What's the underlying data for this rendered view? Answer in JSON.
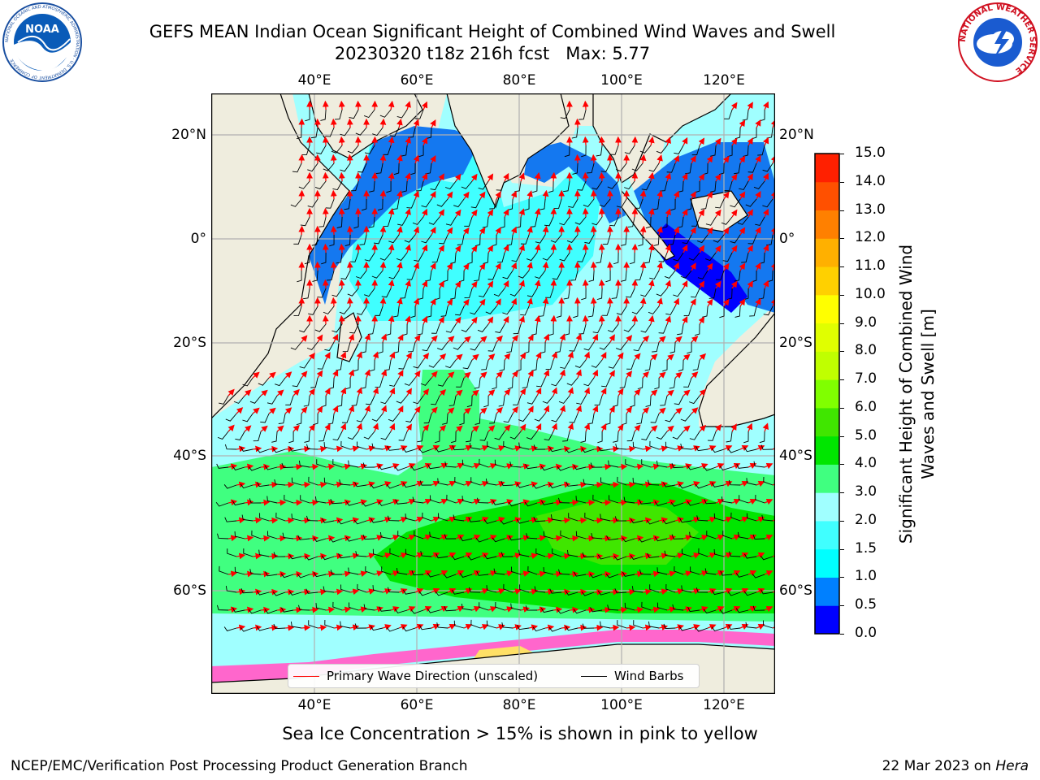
{
  "title": {
    "line1": "GEFS MEAN Indian Ocean Significant Height of Combined Wind Waves and Swell",
    "line2": "20230320 t18z 216h fcst   Max: 5.77"
  },
  "map": {
    "lon_ticks": [
      "40°E",
      "60°E",
      "80°E",
      "100°E",
      "120°E"
    ],
    "lat_ticks": [
      "20°N",
      "0°",
      "20°S",
      "40°S",
      "60°S"
    ],
    "land_color": "#efedde",
    "sea_ice_colors": [
      "#ff66cc",
      "#ff99ff",
      "#ffcc88",
      "#ffe066"
    ]
  },
  "colorbar": {
    "label": "Significant Height of Combined Wind Waves and Swell [m]",
    "ticks": [
      "0.0",
      "0.5",
      "1.0",
      "1.5",
      "2.0",
      "3.0",
      "4.0",
      "5.0",
      "6.0",
      "7.0",
      "8.0",
      "9.0",
      "10.0",
      "11.0",
      "12.0",
      "13.0",
      "14.0",
      "15.0"
    ],
    "colors": [
      "#0000ff",
      "#0080ff",
      "#00ffff",
      "#40ffff",
      "#a0ffff",
      "#40ff80",
      "#00e600",
      "#40e600",
      "#80ff00",
      "#c0ff00",
      "#e0ff00",
      "#ffff00",
      "#ffd000",
      "#ffb000",
      "#ff8000",
      "#ff5000",
      "#ff2000"
    ]
  },
  "legend": {
    "items": [
      {
        "label": "Primary Wave Direction (unscaled)",
        "color": "#ff0000"
      },
      {
        "label": "Wind Barbs",
        "color": "#000000"
      }
    ]
  },
  "footer": {
    "note": "Sea Ice Concentration > 15% is shown in pink to yellow",
    "credit_left": "NCEP/EMC/Verification Post Processing Product Generation Branch",
    "date": "22 Mar 2023 on ",
    "host": "Hera"
  },
  "logos": {
    "noaa": {
      "text": "NOAA",
      "ring_text": "NATIONAL OCEANIC AND ATMOSPHERIC ADMINISTRATION · U.S. DEPARTMENT OF COMMERCE"
    },
    "nws": {
      "ring_text": "NATIONAL WEATHER SERVICE"
    }
  }
}
